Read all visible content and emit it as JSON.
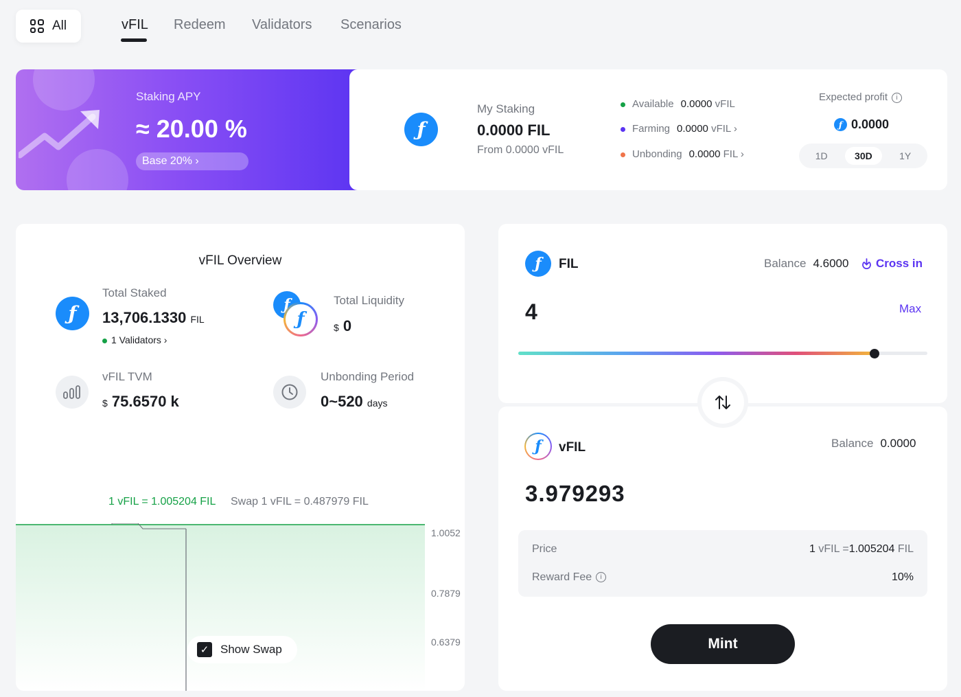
{
  "nav": {
    "all_label": "All",
    "tabs": [
      "vFIL",
      "Redeem",
      "Validators",
      "Scenarios"
    ],
    "active_tab": "vFIL"
  },
  "apy": {
    "label": "Staking APY",
    "value": "≈ 20.00 %",
    "base": "Base 20% ›"
  },
  "my_staking": {
    "label": "My Staking",
    "amount": "0.0000 FIL",
    "from": "From 0.0000 vFIL",
    "available_label": "Available",
    "available_value": "0.0000",
    "available_unit": "vFIL",
    "farming_label": "Farming",
    "farming_value": "0.0000",
    "farming_unit": "vFIL ›",
    "unbonding_label": "Unbonding",
    "unbonding_value": "0.0000",
    "unbonding_unit": "FIL ›",
    "expected_profit_label": "Expected profit",
    "expected_profit_value": "0.0000",
    "periods": [
      "1D",
      "30D",
      "1Y"
    ],
    "active_period": "30D"
  },
  "overview": {
    "title": "vFIL Overview",
    "total_staked_label": "Total Staked",
    "total_staked_value": "13,706.1330",
    "total_staked_unit": "FIL",
    "validators": "1 Validators ›",
    "total_liquidity_label": "Total Liquidity",
    "total_liquidity_prefix": "$",
    "total_liquidity_value": "0",
    "tvm_label": "vFIL TVM",
    "tvm_prefix": "$",
    "tvm_value": "75.6570 k",
    "unbonding_label": "Unbonding Period",
    "unbonding_value": "0~520",
    "unbonding_unit": "days",
    "rate": "1 vFIL = 1.005204 FIL",
    "swap_rate": "Swap 1 vFIL = 0.487979 FIL",
    "show_swap_label": "Show Swap",
    "show_swap_checked": true
  },
  "chart_data": {
    "type": "area",
    "series": [
      {
        "values": [
          1.0052,
          1.0052,
          1.0052,
          1.0052,
          1.0052,
          1.0052
        ]
      }
    ],
    "y_ticks": [
      "1.0052",
      "0.7879",
      "0.6379"
    ],
    "colors": {
      "line": "#15a146",
      "fill": "#d9f2e1"
    }
  },
  "swap": {
    "from_token": "FIL",
    "from_balance_label": "Balance",
    "from_balance": "4.6000",
    "cross_in": "Cross in",
    "from_amount": "4",
    "max_label": "Max",
    "slider_fraction": 0.87,
    "to_token": "vFIL",
    "to_balance_label": "Balance",
    "to_balance": "0.0000",
    "to_amount": "3.979293",
    "price_label": "Price",
    "price_prefix": "1",
    "price_value_prefix_unit": "vFIL =",
    "price_value": "1.005204",
    "price_value_unit": "FIL",
    "reward_fee_label": "Reward Fee",
    "reward_fee_value": "10%",
    "mint_label": "Mint"
  },
  "colors": {
    "accent_purple": "#5b34f2",
    "fil_blue": "#1a8cfb",
    "green": "#15a146",
    "dark": "#1b1d22"
  }
}
